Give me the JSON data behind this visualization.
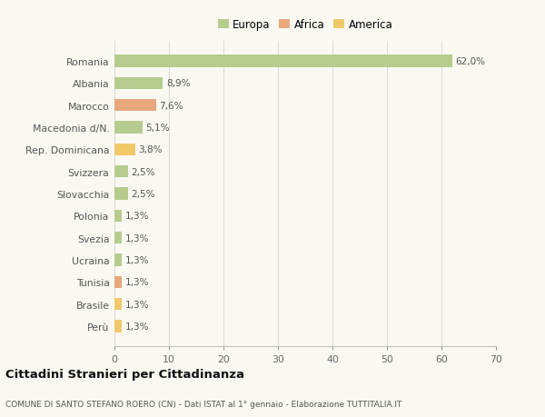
{
  "categories": [
    "Romania",
    "Albania",
    "Marocco",
    "Macedonia d/N.",
    "Rep. Dominicana",
    "Svizzera",
    "Slovacchia",
    "Polonia",
    "Svezia",
    "Ucraina",
    "Tunisia",
    "Brasile",
    "Perù"
  ],
  "values": [
    62.0,
    8.9,
    7.6,
    5.1,
    3.8,
    2.5,
    2.5,
    1.3,
    1.3,
    1.3,
    1.3,
    1.3,
    1.3
  ],
  "labels": [
    "62,0%",
    "8,9%",
    "7,6%",
    "5,1%",
    "3,8%",
    "2,5%",
    "2,5%",
    "1,3%",
    "1,3%",
    "1,3%",
    "1,3%",
    "1,3%",
    "1,3%"
  ],
  "colors": [
    "#b5cc8e",
    "#b5cc8e",
    "#e8a87c",
    "#b5cc8e",
    "#f0c96b",
    "#b5cc8e",
    "#b5cc8e",
    "#b5cc8e",
    "#b5cc8e",
    "#b5cc8e",
    "#e8a87c",
    "#f0c96b",
    "#f0c96b"
  ],
  "legend": [
    {
      "label": "Europa",
      "color": "#b5cc8e"
    },
    {
      "label": "Africa",
      "color": "#e8a87c"
    },
    {
      "label": "America",
      "color": "#f0c96b"
    }
  ],
  "xlim": [
    0,
    70
  ],
  "xticks": [
    0,
    10,
    20,
    30,
    40,
    50,
    60,
    70
  ],
  "title": "Cittadini Stranieri per Cittadinanza",
  "subtitle": "COMUNE DI SANTO STEFANO ROERO (CN) - Dati ISTAT al 1° gennaio - Elaborazione TUTTITALIA.IT",
  "background_color": "#f9f9f2",
  "grid_color": "#d8d8d8",
  "bar_height": 0.55
}
